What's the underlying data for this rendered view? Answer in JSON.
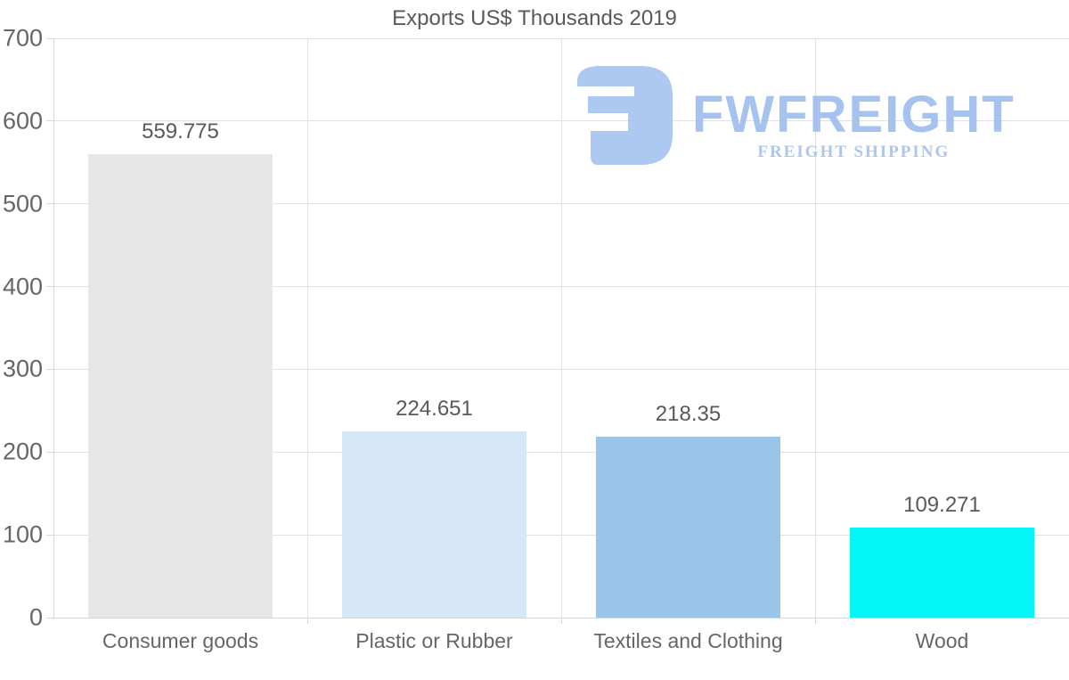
{
  "title": "Exports US$ Thousands 2019",
  "logo": {
    "name": "FWFREIGHT",
    "tagline": "FREIGHT SHIPPING",
    "icon": "fwfreight-monogram-icon",
    "icon_color": "#A9C6F1",
    "name_color": "#A2BFEE",
    "tagline_color": "#A9C3EC"
  },
  "colors": {
    "background": "#FFFFFF",
    "grid": "#E1E1E1",
    "axis": "#D6D6D6",
    "title_text": "#595959",
    "tick_text": "#666666",
    "value_text": "#595959"
  },
  "chart_data": {
    "type": "bar",
    "title": "Exports US$ Thousands 2019",
    "categories": [
      "Consumer goods",
      "Plastic or Rubber",
      "Textiles and Clothing",
      "Wood"
    ],
    "values": [
      559.775,
      224.651,
      218.35,
      109.271
    ],
    "value_labels": [
      "559.775",
      "224.651",
      "218.35",
      "109.271"
    ],
    "bar_colors": [
      "#E7E7E7",
      "#D6E7F8",
      "#98C5E9",
      "#04F6F6"
    ],
    "xlabel": "",
    "ylabel": "",
    "ylim": [
      0,
      700
    ],
    "yticks": [
      0,
      100,
      200,
      300,
      400,
      500,
      600,
      700
    ],
    "grid": true,
    "legend": false
  }
}
